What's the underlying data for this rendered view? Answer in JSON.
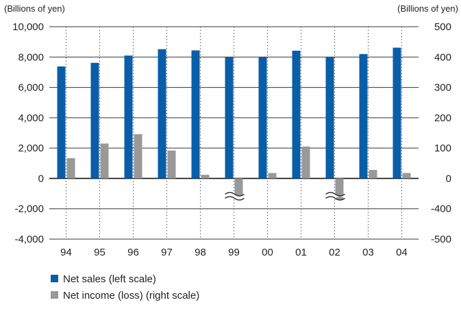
{
  "chart_data": {
    "type": "bar",
    "title": "",
    "left_unit": "(Billions of yen)",
    "right_unit": "(Billions of yen)",
    "categories": [
      "94",
      "95",
      "96",
      "97",
      "98",
      "99",
      "00",
      "01",
      "02",
      "03",
      "04"
    ],
    "left_ticks": [
      "10,000",
      "8,000",
      "6,000",
      "4,000",
      "2,000",
      "0",
      "-2,000",
      "-4,000"
    ],
    "right_ticks": [
      "500",
      "400",
      "300",
      "200",
      "100",
      "0",
      "-400",
      "-500"
    ],
    "left_ylim": [
      -4000,
      10000
    ],
    "right_scale": "positive 0-500 linear; negative side broken: -400 and -500 at -2,000 and -4,000 grid lines",
    "grid": "horizontal solid lines, vertical dotted lines at categories",
    "legend_position": "bottom-left",
    "series": [
      {
        "name": "Net sales (left scale)",
        "axis": "left",
        "color": "#0a5ea8",
        "values": [
          7380,
          7620,
          8100,
          8520,
          8440,
          8000,
          8000,
          8420,
          8000,
          8200,
          8620
        ]
      },
      {
        "name": "Net income (loss) (right scale)",
        "axis": "right",
        "color": "#999999",
        "values": [
          67,
          115,
          146,
          92,
          12,
          -390,
          18,
          105,
          -480,
          28,
          18
        ],
        "broken_bars": [
          "99",
          "02"
        ]
      }
    ]
  }
}
